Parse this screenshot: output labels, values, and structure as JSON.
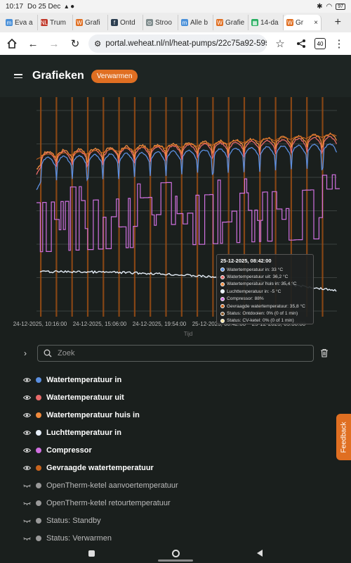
{
  "status": {
    "time": "10:17",
    "date": "Do 25 Dec",
    "battery": "97"
  },
  "tabs": [
    {
      "label": "Eva a",
      "fav_color": "#4a90d9",
      "fav_char": "m"
    },
    {
      "label": "Trum",
      "fav_color": "#c0392b",
      "fav_char": "NL"
    },
    {
      "label": "Grafi",
      "fav_color": "#e06f22",
      "fav_char": "W"
    },
    {
      "label": "Ontd",
      "fav_color": "#2c3e50",
      "fav_char": "f"
    },
    {
      "label": "Stroo",
      "fav_color": "#7f8c8d",
      "fav_char": "⊙"
    },
    {
      "label": "Alle b",
      "fav_color": "#4a90d9",
      "fav_char": "m"
    },
    {
      "label": "Grafie",
      "fav_color": "#e06f22",
      "fav_char": "W"
    },
    {
      "label": "14-da",
      "fav_color": "#27ae60",
      "fav_char": "▦"
    },
    {
      "label": "Gr",
      "fav_color": "#e06f22",
      "fav_char": "W",
      "active": true
    }
  ],
  "browser": {
    "url": "portal.weheat.nl/nl/heat-pumps/22c75a92-595f-4",
    "tab_count": "40"
  },
  "app": {
    "title": "Grafieken",
    "mode": "Verwarmen"
  },
  "chart_data": {
    "type": "line",
    "xlabel": "Tijd",
    "x_ticks": [
      "24-12-2025, 10:16:00",
      "24-12-2025, 15:06:00",
      "24-12-2025, 19:54:00",
      "25-12-2025, 00:42:00",
      "25-12-2025, 05:30:00"
    ],
    "ylabel": "",
    "grid": true,
    "series": [
      {
        "name": "Watertemperatuur in",
        "color": "#5b8fe0",
        "pattern": "cycling ~30-33 °C, rising"
      },
      {
        "name": "Watertemperatuur uit",
        "color": "#e86a6a"
      },
      {
        "name": "Watertemperatuur huis in",
        "color": "#f08a3c"
      },
      {
        "name": "Luchttemperatuur in",
        "color": "#e6eef8"
      },
      {
        "name": "Compressor",
        "color": "#d070e0"
      },
      {
        "name": "Gevraagde watertemperatuur",
        "color": "#c8641e"
      }
    ],
    "tooltip": {
      "title": "25-12-2025, 08:42:00",
      "rows": [
        {
          "label": "Watertemperatuur in: 33 °C",
          "color": "#5b8fe0"
        },
        {
          "label": "Watertemperatuur uit: 36,2 °C",
          "color": "#e86a6a"
        },
        {
          "label": "Watertemperatuur huis in: 35,4 °C",
          "color": "#f08a3c"
        },
        {
          "label": "Luchttemperatuur in: -5 °C",
          "color": "#e6eef8"
        },
        {
          "label": "Compressor: 88%",
          "color": "#d070e0"
        },
        {
          "label": "Gevraagde watertemperatuur: 35,8 °C",
          "color": "#c8641e"
        },
        {
          "label": "Status: Ontdooien: 0% (0 of 1 min)",
          "color": "#8a5a2a"
        },
        {
          "label": "Status: CV-ketel: 0% (0 of 1 min)",
          "color": "#f3e2a0"
        }
      ]
    }
  },
  "search": {
    "placeholder": "Zoek"
  },
  "legend": [
    {
      "label": "Watertemperatuur in",
      "color": "#5b8fe0",
      "visible": true
    },
    {
      "label": "Watertemperatuur uit",
      "color": "#e86a6a",
      "visible": true
    },
    {
      "label": "Watertemperatuur huis in",
      "color": "#f08a3c",
      "visible": true
    },
    {
      "label": "Luchttemperatuur in",
      "color": "#e6eef8",
      "visible": true
    },
    {
      "label": "Compressor",
      "color": "#d070e0",
      "visible": true
    },
    {
      "label": "Gevraagde watertemperatuur",
      "color": "#c8641e",
      "visible": true
    },
    {
      "label": "OpenTherm-ketel aanvoertemperatuur",
      "color": "#999999",
      "visible": false
    },
    {
      "label": "OpenTherm-ketel retourtemperatuur",
      "color": "#999999",
      "visible": false
    },
    {
      "label": "Status: Standby",
      "color": "#999999",
      "visible": false
    },
    {
      "label": "Status: Verwarmen",
      "color": "#999999",
      "visible": false
    }
  ],
  "feedback": "Feedback"
}
